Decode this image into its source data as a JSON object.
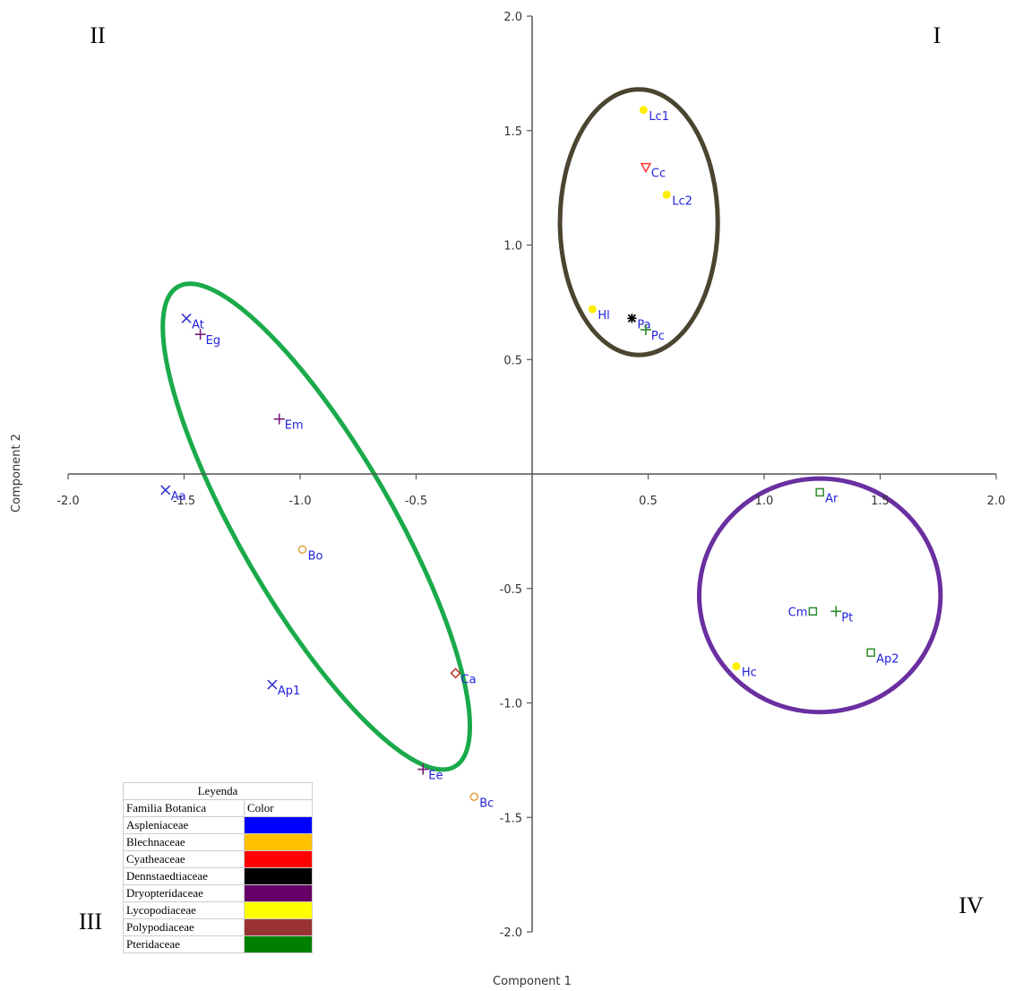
{
  "chart_data": {
    "type": "scatter",
    "xlabel": "Component 1",
    "ylabel": "Component 2",
    "xlim": [
      -2.0,
      2.0
    ],
    "ylim": [
      -2.0,
      2.0
    ],
    "x_ticks": [
      -2.0,
      -1.5,
      -1.0,
      -0.5,
      0.5,
      1.0,
      1.5,
      2.0
    ],
    "x_tick_labels": [
      "-2.0",
      "-1.5",
      "-1.0",
      "-0.5",
      "0.5",
      "1.0",
      "1.5",
      "2.0"
    ],
    "y_ticks": [
      2.0,
      1.5,
      1.0,
      0.5,
      -0.5,
      -1.0,
      -1.5,
      -2.0
    ],
    "y_tick_labels": [
      "2.0",
      "1.5",
      "1.0",
      "0.5",
      "-0.5",
      "-1.0",
      "-1.5",
      "-2.0"
    ],
    "quadrant_labels": [
      {
        "text": "I",
        "position": "top-right"
      },
      {
        "text": "II",
        "position": "top-left"
      },
      {
        "text": "III",
        "position": "bottom-left"
      },
      {
        "text": "IV",
        "position": "bottom-right"
      }
    ],
    "points": [
      {
        "label": "Lc1",
        "x": 0.48,
        "y": 1.59,
        "marker": "dot",
        "color": "#ffee00",
        "label_side": "right"
      },
      {
        "label": "Cc",
        "x": 0.49,
        "y": 1.34,
        "marker": "triangle-down",
        "color": "#ff3333",
        "label_side": "right"
      },
      {
        "label": "Lc2",
        "x": 0.58,
        "y": 1.22,
        "marker": "dot",
        "color": "#ffee00",
        "label_side": "right"
      },
      {
        "label": "Hl",
        "x": 0.26,
        "y": 0.72,
        "marker": "dot",
        "color": "#ffee00",
        "label_side": "right"
      },
      {
        "label": "Pa",
        "x": 0.43,
        "y": 0.68,
        "marker": "asterisk",
        "color": "#000000",
        "label_side": "right"
      },
      {
        "label": "Pc",
        "x": 0.49,
        "y": 0.63,
        "marker": "plus",
        "color": "#2e8b2e",
        "label_side": "right"
      },
      {
        "label": "At",
        "x": -1.49,
        "y": 0.68,
        "marker": "cross",
        "color": "#3333cc",
        "label_side": "right"
      },
      {
        "label": "Eg",
        "x": -1.43,
        "y": 0.61,
        "marker": "plus",
        "color": "#7a1a7a",
        "label_side": "right"
      },
      {
        "label": "Em",
        "x": -1.09,
        "y": 0.24,
        "marker": "plus",
        "color": "#7a1a7a",
        "label_side": "right"
      },
      {
        "label": "Aa",
        "x": -1.58,
        "y": -0.07,
        "marker": "cross",
        "color": "#3333cc",
        "label_side": "right"
      },
      {
        "label": "Bo",
        "x": -0.99,
        "y": -0.33,
        "marker": "circle",
        "color": "#e0a040",
        "label_side": "right"
      },
      {
        "label": "Ca",
        "x": -0.33,
        "y": -0.87,
        "marker": "diamond",
        "color": "#c0302a",
        "label_side": "right"
      },
      {
        "label": "Ap1",
        "x": -1.12,
        "y": -0.92,
        "marker": "cross",
        "color": "#3333cc",
        "label_side": "right"
      },
      {
        "label": "Ee",
        "x": -0.47,
        "y": -1.29,
        "marker": "plus",
        "color": "#7a1a7a",
        "label_side": "right"
      },
      {
        "label": "Bc",
        "x": -0.25,
        "y": -1.41,
        "marker": "circle",
        "color": "#e0a040",
        "label_side": "right"
      },
      {
        "label": "Ar",
        "x": 1.24,
        "y": -0.08,
        "marker": "square",
        "color": "#2e8b2e",
        "label_side": "right"
      },
      {
        "label": "Cm",
        "x": 1.21,
        "y": -0.6,
        "marker": "square",
        "color": "#2e8b2e",
        "label_side": "left"
      },
      {
        "label": "Pt",
        "x": 1.31,
        "y": -0.6,
        "marker": "plus",
        "color": "#2e8b2e",
        "label_side": "right"
      },
      {
        "label": "Ap2",
        "x": 1.46,
        "y": -0.78,
        "marker": "square",
        "color": "#2e8b2e",
        "label_side": "right"
      },
      {
        "label": "Hc",
        "x": 0.88,
        "y": -0.84,
        "marker": "dot",
        "color": "#ffee00",
        "label_side": "right"
      }
    ],
    "ellipses": [
      {
        "name": "group-I",
        "cx": 0.46,
        "cy": 1.1,
        "rx": 0.34,
        "ry": 0.58,
        "angle": 0,
        "color": "#4a4530"
      },
      {
        "name": "group-II-III",
        "cx": -0.93,
        "cy": -0.23,
        "rx": 0.33,
        "ry": 1.21,
        "angle": -30,
        "color": "#1aaa4a"
      },
      {
        "name": "group-IV",
        "cx": 1.24,
        "cy": -0.53,
        "rx": 0.52,
        "ry": 0.51,
        "angle": 0,
        "color": "#6a2fa0"
      }
    ]
  },
  "legend": {
    "title": "Leyenda",
    "header_family": "Familia Botanica",
    "header_color": "Color",
    "rows": [
      {
        "family": "Aspleniaceae",
        "color": "#0000ff"
      },
      {
        "family": "Blechnaceae",
        "color": "#ffc000"
      },
      {
        "family": "Cyatheaceae",
        "color": "#ff0000"
      },
      {
        "family": "Dennstaedtiaceae",
        "color": "#000000"
      },
      {
        "family": "Dryopteridaceae",
        "color": "#660066"
      },
      {
        "family": "Lycopodiaceae",
        "color": "#ffff00"
      },
      {
        "family": "Polypodiaceae",
        "color": "#993333"
      },
      {
        "family": "Pteridaceae",
        "color": "#008000"
      }
    ]
  }
}
